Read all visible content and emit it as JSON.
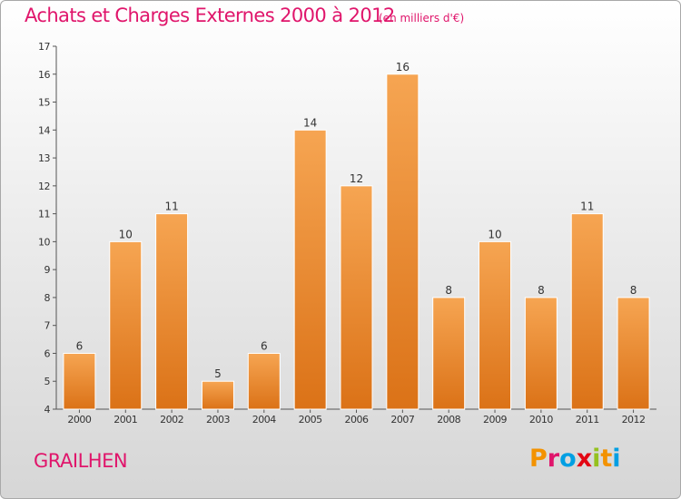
{
  "header": {
    "title": "Achats et Charges Externes 2000 à 2012",
    "unit": "(en milliers d'€)"
  },
  "footer": {
    "commune": "GRAILHEN",
    "logo_text": "Proxiti",
    "logo_colors": [
      "#f39200",
      "#e0156b",
      "#009fe3",
      "#e30613",
      "#95c11f",
      "#f39200",
      "#009fe3"
    ]
  },
  "colors": {
    "bar_light": "#f6a552",
    "bar_dark": "#db7217",
    "title": "#e0156b"
  },
  "chart_data": {
    "type": "bar",
    "title": "Achats et Charges Externes 2000 à 2012",
    "subtitle": "(en milliers d'€)",
    "categories": [
      "2000",
      "2001",
      "2002",
      "2003",
      "2004",
      "2005",
      "2006",
      "2007",
      "2008",
      "2009",
      "2010",
      "2011",
      "2012"
    ],
    "values": [
      6,
      10,
      11,
      5,
      6,
      14,
      12,
      16,
      8,
      10,
      8,
      11,
      8
    ],
    "ylim": [
      4,
      17
    ],
    "yticks": [
      4,
      5,
      6,
      7,
      8,
      9,
      10,
      11,
      12,
      13,
      14,
      15,
      16,
      17
    ],
    "grid": false,
    "legend": "none",
    "data_labels": true
  }
}
